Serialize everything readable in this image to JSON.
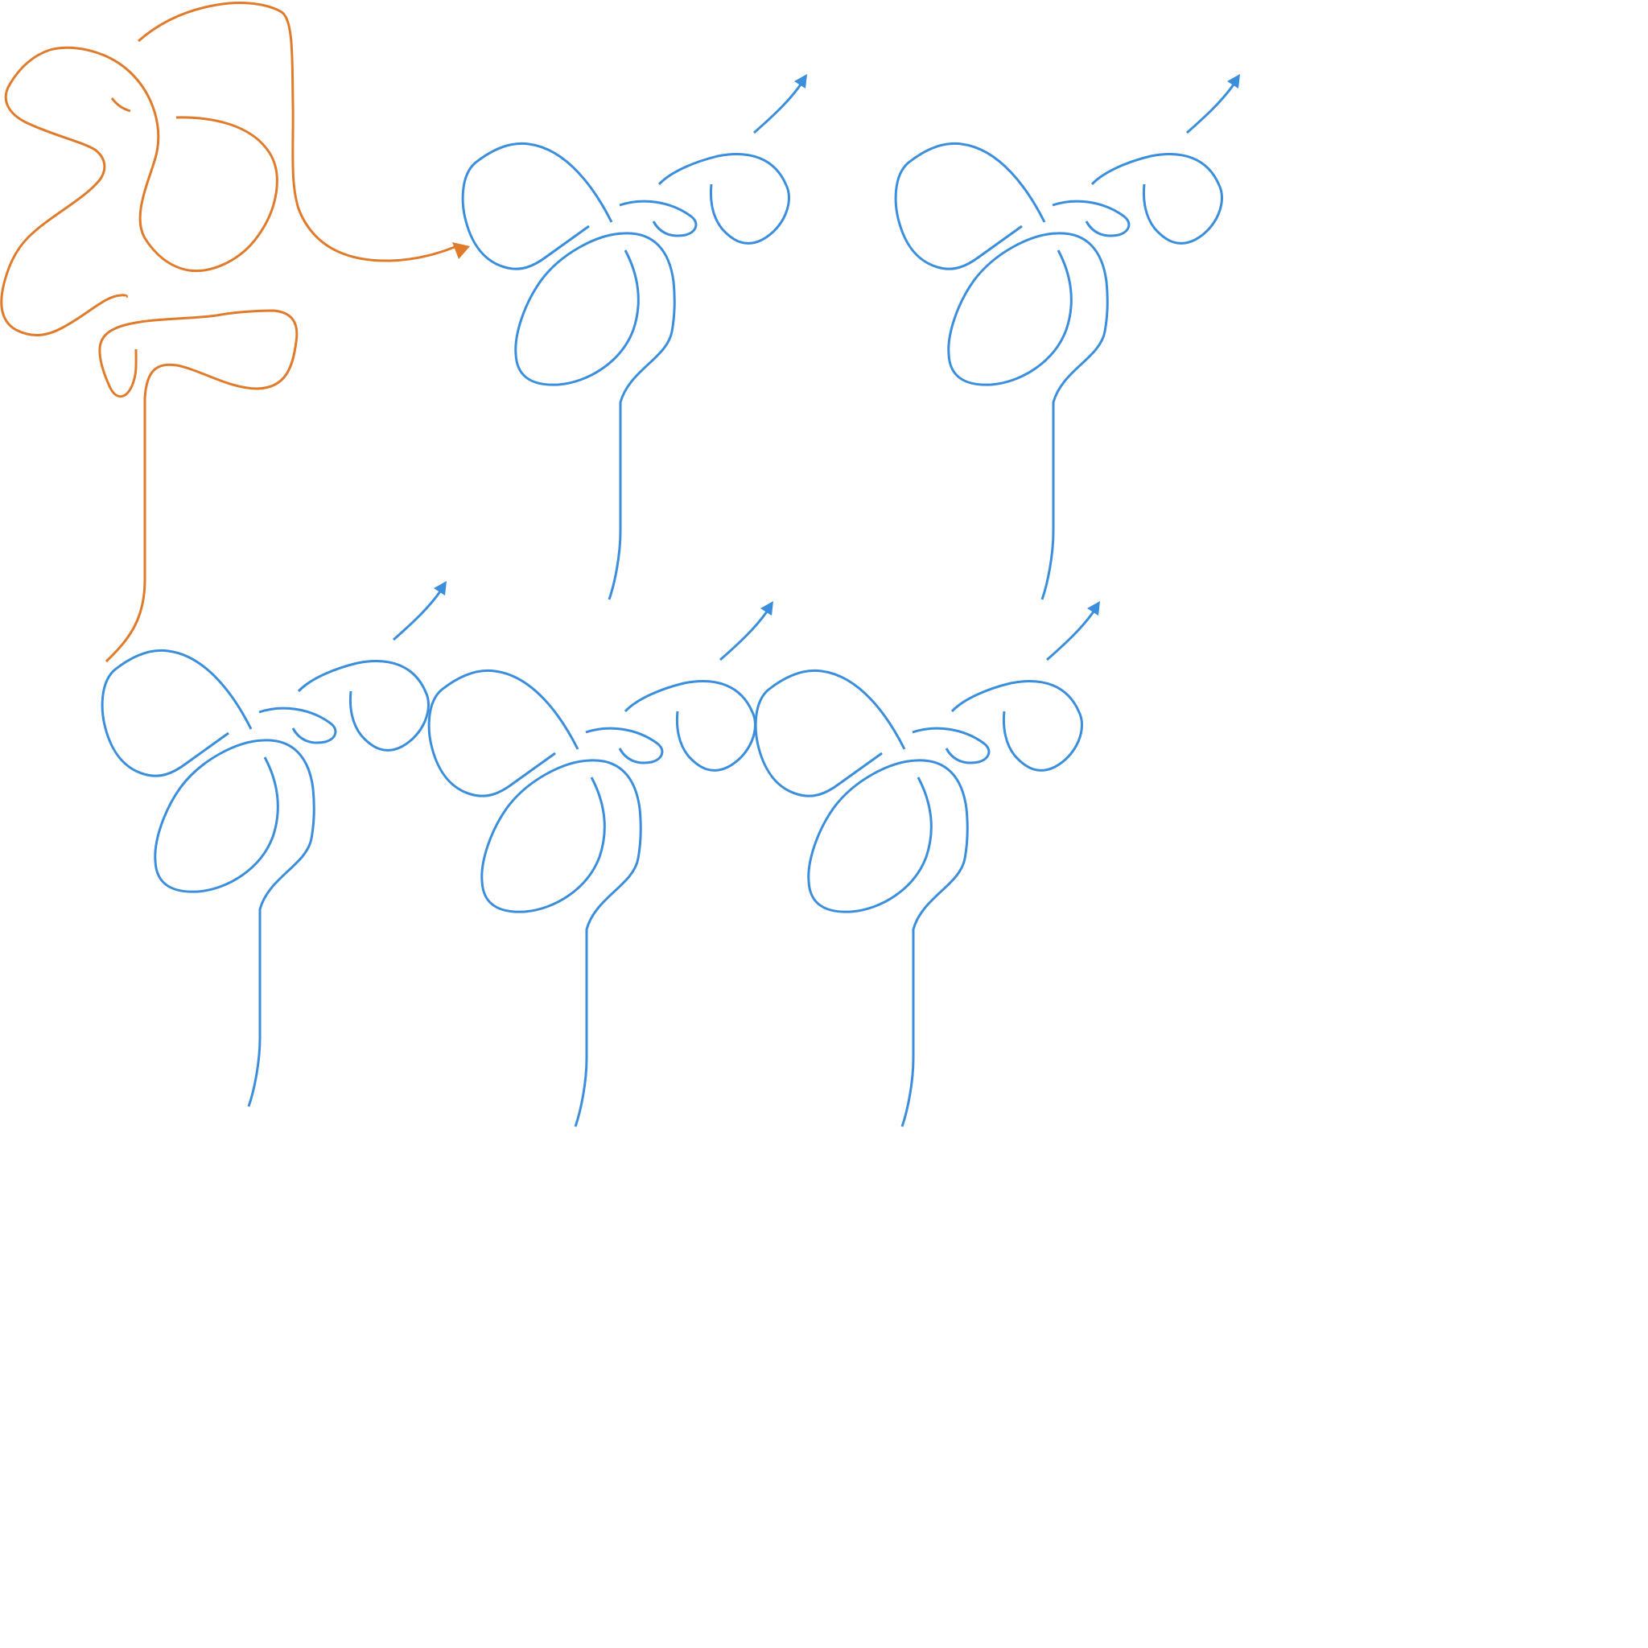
{
  "diagram": {
    "kind": "knot-diagrams",
    "colors": {
      "original": "#E07B2C",
      "variant": "#3A8EDB",
      "background": "#FFFFFF"
    },
    "panels": [
      {
        "id": "original",
        "color_key": "original",
        "has_arrow": true
      },
      {
        "id": "variant-1",
        "color_key": "variant",
        "has_arrow": true
      },
      {
        "id": "variant-2",
        "color_key": "variant",
        "has_arrow": true
      },
      {
        "id": "variant-3",
        "color_key": "variant",
        "has_arrow": true
      },
      {
        "id": "variant-4",
        "color_key": "variant",
        "has_arrow": true
      },
      {
        "id": "variant-5",
        "color_key": "variant",
        "has_arrow": true
      }
    ]
  }
}
